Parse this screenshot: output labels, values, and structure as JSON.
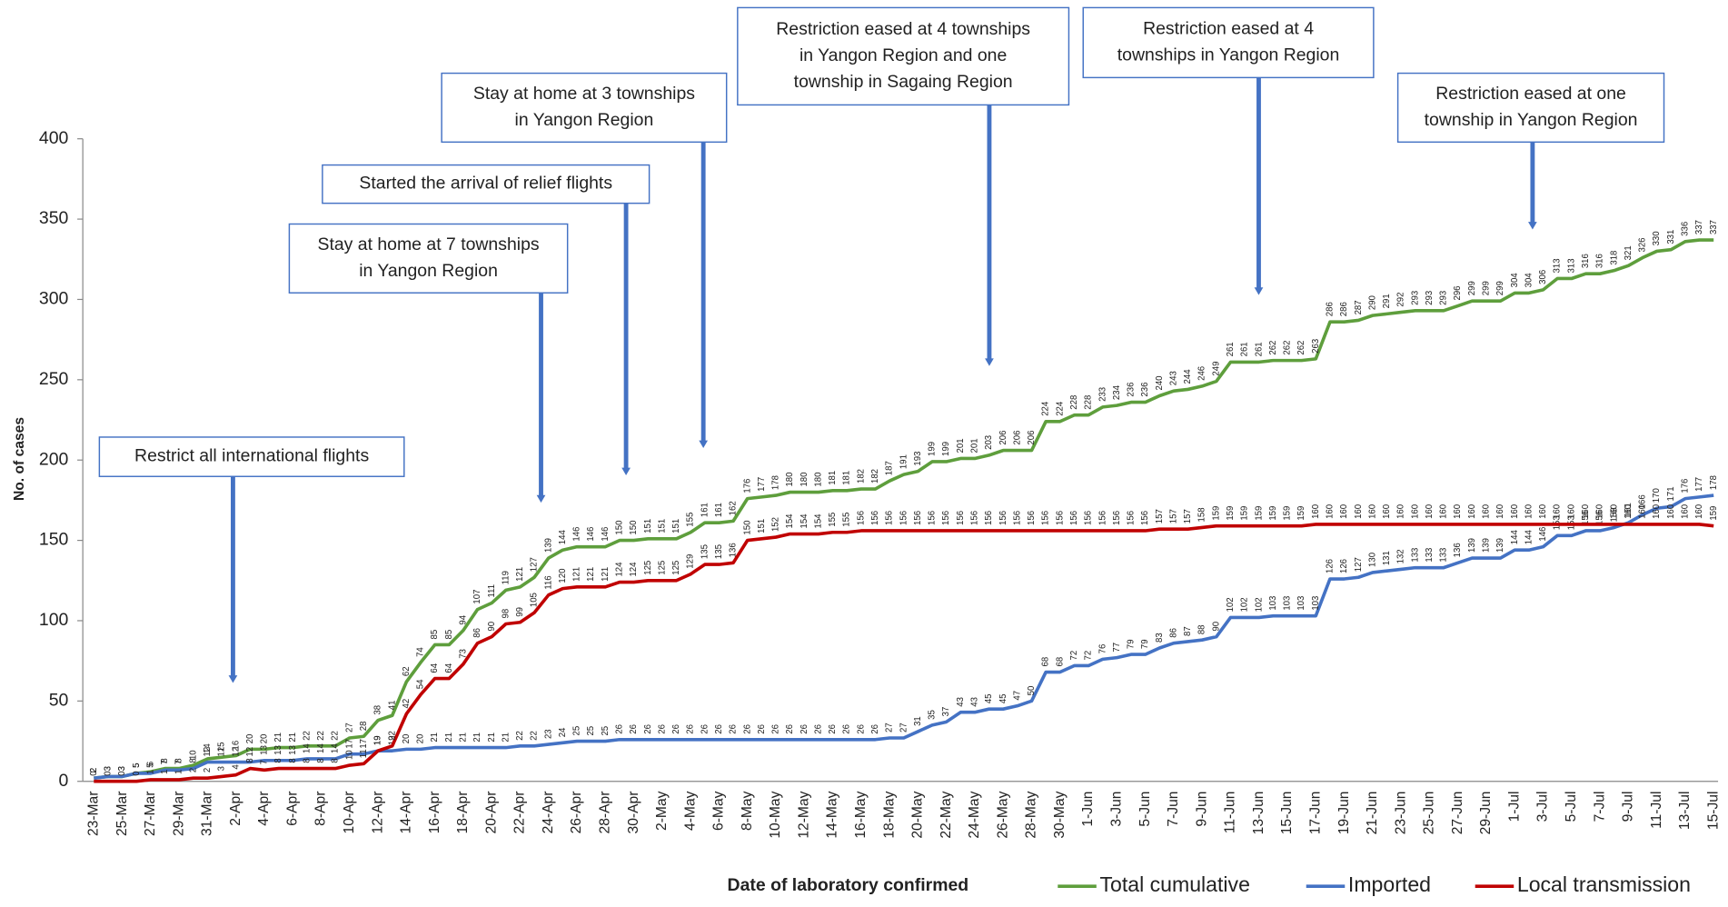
{
  "chart_data": {
    "type": "line",
    "ylabel": "No. of cases",
    "xlabel": "Date of laboratory confirmed",
    "categories": [
      "23-Mar",
      null,
      "25-Mar",
      null,
      "27-Mar",
      null,
      "29-Mar",
      null,
      "31-Mar",
      null,
      "2-Apr",
      null,
      "4-Apr",
      null,
      "6-Apr",
      null,
      "8-Apr",
      null,
      "10-Apr",
      null,
      "12-Apr",
      null,
      "14-Apr",
      null,
      "16-Apr",
      null,
      "18-Apr",
      null,
      "20-Apr",
      null,
      "22-Apr",
      null,
      "24-Apr",
      null,
      "26-Apr",
      null,
      "28-Apr",
      null,
      "30-Apr",
      null,
      "2-May",
      null,
      "4-May",
      null,
      "6-May",
      null,
      "8-May",
      null,
      "10-May",
      null,
      "12-May",
      null,
      "14-May",
      null,
      "16-May",
      null,
      "18-May",
      null,
      "20-May",
      null,
      "22-May",
      null,
      "24-May",
      null,
      "26-May",
      null,
      "28-May",
      null,
      "30-May",
      null,
      "1-Jun",
      null,
      "3-Jun",
      null,
      "5-Jun",
      null,
      "7-Jun",
      null,
      "9-Jun",
      null,
      "11-Jun",
      null,
      "13-Jun",
      null,
      "15-Jun",
      null,
      "17-Jun",
      null,
      "19-Jun",
      null,
      "21-Jun",
      null,
      "23-Jun",
      null,
      "25-Jun",
      null,
      "27-Jun",
      null,
      "29-Jun",
      null,
      "1-Jul",
      null,
      "3-Jul",
      null,
      "5-Jul",
      null,
      "7-Jul",
      null,
      "9-Jul",
      null,
      "11-Jul",
      null,
      "13-Jul",
      null,
      "15-Jul"
    ],
    "series": [
      {
        "name": "Total cumulative",
        "color": "#5e9e3c",
        "values": [
          2,
          3,
          3,
          5,
          6,
          8,
          8,
          10,
          14,
          15,
          16,
          20,
          20,
          21,
          21,
          22,
          22,
          22,
          27,
          28,
          38,
          41,
          62,
          74,
          85,
          85,
          94,
          107,
          111,
          119,
          121,
          127,
          139,
          144,
          146,
          146,
          146,
          150,
          150,
          151,
          151,
          151,
          155,
          161,
          161,
          162,
          176,
          177,
          178,
          180,
          180,
          180,
          181,
          181,
          182,
          182,
          187,
          191,
          193,
          199,
          199,
          201,
          201,
          203,
          206,
          206,
          206,
          224,
          224,
          228,
          228,
          233,
          234,
          236,
          236,
          240,
          243,
          244,
          246,
          249,
          261,
          261,
          261,
          262,
          262,
          262,
          263,
          286,
          286,
          287,
          290,
          291,
          292,
          293,
          293,
          293,
          296,
          299,
          299,
          299,
          304,
          304,
          306,
          313,
          313,
          316,
          316,
          318,
          321,
          326,
          330,
          331,
          336,
          337,
          337
        ]
      },
      {
        "name": "Imported",
        "color": "#4472c4",
        "values": [
          2,
          3,
          3,
          5,
          5,
          7,
          7,
          8,
          12,
          12,
          12,
          12,
          13,
          13,
          13,
          14,
          14,
          14,
          17,
          17,
          19,
          19,
          20,
          20,
          21,
          21,
          21,
          21,
          21,
          21,
          22,
          22,
          23,
          24,
          25,
          25,
          25,
          26,
          26,
          26,
          26,
          26,
          26,
          26,
          26,
          26,
          26,
          26,
          26,
          26,
          26,
          26,
          26,
          26,
          26,
          26,
          27,
          27,
          31,
          35,
          37,
          43,
          43,
          45,
          45,
          47,
          50,
          68,
          68,
          72,
          72,
          76,
          77,
          79,
          79,
          83,
          86,
          87,
          88,
          90,
          102,
          102,
          102,
          103,
          103,
          103,
          103,
          126,
          126,
          127,
          130,
          131,
          132,
          133,
          133,
          133,
          136,
          139,
          139,
          139,
          144,
          144,
          146,
          153,
          153,
          156,
          156,
          158,
          161,
          166,
          170,
          171,
          176,
          177,
          178
        ]
      },
      {
        "name": "Local transmission",
        "color": "#c00000",
        "values": [
          0,
          0,
          0,
          0,
          1,
          1,
          1,
          2,
          2,
          3,
          4,
          8,
          7,
          8,
          8,
          8,
          8,
          8,
          10,
          11,
          19,
          22,
          42,
          54,
          64,
          64,
          73,
          86,
          90,
          98,
          99,
          105,
          116,
          120,
          121,
          121,
          121,
          124,
          124,
          125,
          125,
          125,
          129,
          135,
          135,
          136,
          150,
          151,
          152,
          154,
          154,
          154,
          155,
          155,
          156,
          156,
          156,
          156,
          156,
          156,
          156,
          156,
          156,
          156,
          156,
          156,
          156,
          156,
          156,
          156,
          156,
          156,
          156,
          156,
          156,
          157,
          157,
          157,
          158,
          159,
          159,
          159,
          159,
          159,
          159,
          159,
          160,
          160,
          160,
          160,
          160,
          160,
          160,
          160,
          160,
          160,
          160,
          160,
          160,
          160,
          160,
          160,
          160,
          160,
          160,
          160,
          160,
          160,
          160,
          160,
          160,
          160,
          160,
          160,
          159
        ]
      }
    ],
    "ylim": [
      0,
      400
    ],
    "yticks": [
      0,
      50,
      100,
      150,
      200,
      250,
      300,
      350,
      400
    ],
    "annotations": [
      {
        "lines": [
          "Restrict all international flights"
        ]
      },
      {
        "lines": [
          "Stay at home  at 7 townships",
          "in Yangon Region"
        ]
      },
      {
        "lines": [
          "Started the arrival of relief flights"
        ]
      },
      {
        "lines": [
          "Stay at home  at 3 townships",
          "in Yangon Region"
        ]
      },
      {
        "lines": [
          "Restriction eased  at 4 townships",
          "in Yangon Region and one",
          "township  in Sagaing Region"
        ]
      },
      {
        "lines": [
          "Restriction eased  at 4",
          "townships in Yangon Region"
        ]
      },
      {
        "lines": [
          "Restriction eased  at one",
          "township  in Yangon Region"
        ]
      }
    ]
  }
}
